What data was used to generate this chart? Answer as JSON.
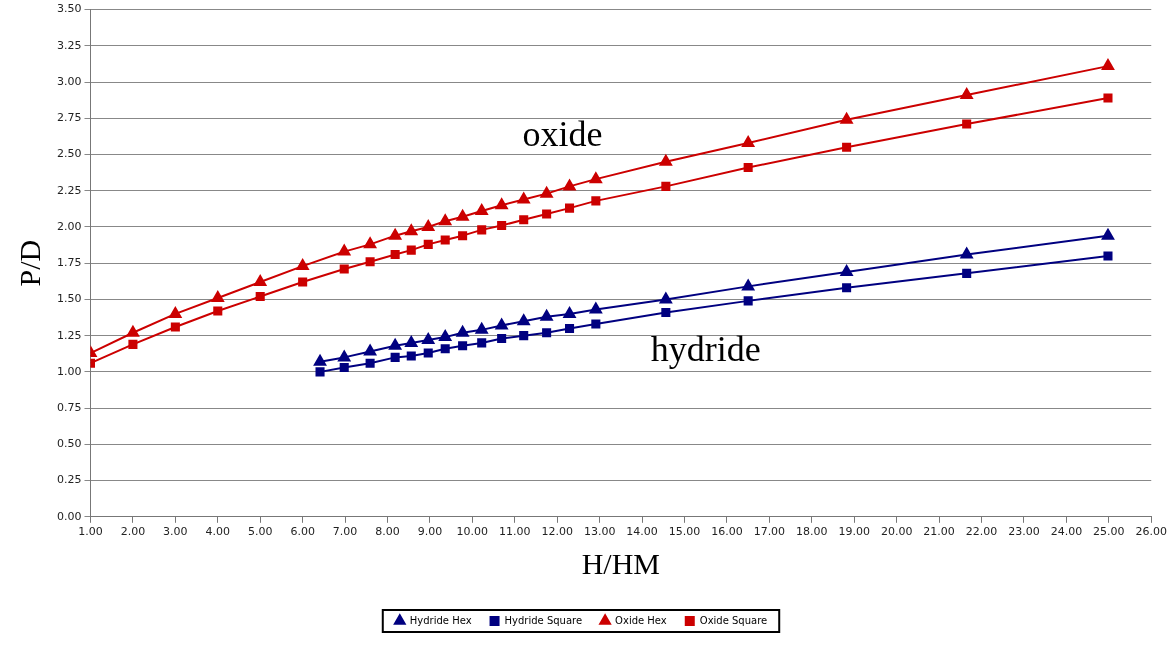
{
  "chart_data": {
    "type": "line",
    "xlabel": "H/HM",
    "ylabel": "P/D",
    "xlim": [
      1,
      26
    ],
    "xticks": [
      {
        "value": 1,
        "label": "1.00"
      },
      {
        "value": 2,
        "label": "2.00"
      },
      {
        "value": 3,
        "label": "3.00"
      },
      {
        "value": 4,
        "label": "4.00"
      },
      {
        "value": 5,
        "label": "5.00"
      },
      {
        "value": 6,
        "label": "6.00"
      },
      {
        "value": 7,
        "label": "7.00"
      },
      {
        "value": 8,
        "label": "8.00"
      },
      {
        "value": 9,
        "label": "9.00"
      },
      {
        "value": 10,
        "label": "10.00"
      },
      {
        "value": 11,
        "label": "11.00"
      },
      {
        "value": 12,
        "label": "12.00"
      },
      {
        "value": 13,
        "label": "13.00"
      },
      {
        "value": 14,
        "label": "14.00"
      },
      {
        "value": 15,
        "label": "15.00"
      },
      {
        "value": 16,
        "label": "16.00"
      },
      {
        "value": 17,
        "label": "17.00"
      },
      {
        "value": 18,
        "label": "18.00"
      },
      {
        "value": 19,
        "label": "19.00"
      },
      {
        "value": 20,
        "label": "20.00"
      },
      {
        "value": 21,
        "label": "21.00"
      },
      {
        "value": 22,
        "label": "22.00"
      },
      {
        "value": 23,
        "label": "23.00"
      },
      {
        "value": 24,
        "label": "24.00"
      },
      {
        "value": 25,
        "label": "25.00"
      },
      {
        "value": 26,
        "label": "26.00"
      }
    ],
    "ylim": [
      0,
      3.5
    ],
    "yticks": [
      {
        "value": 0,
        "label": "0.00"
      },
      {
        "value": 0.25,
        "label": "0.25"
      },
      {
        "value": 0.5,
        "label": "0.50"
      },
      {
        "value": 0.75,
        "label": "0.75"
      },
      {
        "value": 1,
        "label": "1.00"
      },
      {
        "value": 1.25,
        "label": "1.25"
      },
      {
        "value": 1.5,
        "label": "1.50"
      },
      {
        "value": 1.75,
        "label": "1.75"
      },
      {
        "value": 2,
        "label": "2.00"
      },
      {
        "value": 2.25,
        "label": "2.25"
      },
      {
        "value": 2.5,
        "label": "2.50"
      },
      {
        "value": 2.75,
        "label": "2.75"
      },
      {
        "value": 3,
        "label": "3.00"
      },
      {
        "value": 3.25,
        "label": "3.25"
      },
      {
        "value": 3.5,
        "label": "3.50"
      }
    ],
    "grid": "y",
    "legend": "bottom",
    "line_style": "solid",
    "annotations": [
      "oxide",
      "hydride"
    ],
    "series": [
      {
        "name": "Hydride Hex",
        "color": "#000080",
        "marker": "triangle",
        "x": [
          6.41,
          6.98,
          7.59,
          8.18,
          8.56,
          8.96,
          9.36,
          9.77,
          10.22,
          10.69,
          11.21,
          11.75,
          12.29,
          12.91,
          14.56,
          16.5,
          18.82,
          21.65,
          24.98
        ],
        "values": [
          1.07,
          1.1,
          1.14,
          1.18,
          1.2,
          1.22,
          1.24,
          1.27,
          1.29,
          1.32,
          1.35,
          1.38,
          1.4,
          1.43,
          1.5,
          1.59,
          1.69,
          1.81,
          1.94
        ]
      },
      {
        "name": "Hydride Square",
        "color": "#000080",
        "marker": "square",
        "x": [
          6.41,
          6.98,
          7.59,
          8.18,
          8.56,
          8.96,
          9.36,
          9.77,
          10.22,
          10.69,
          11.21,
          11.75,
          12.29,
          12.91,
          14.56,
          16.5,
          18.82,
          21.65,
          24.98
        ],
        "values": [
          1.0,
          1.03,
          1.06,
          1.1,
          1.11,
          1.13,
          1.16,
          1.18,
          1.2,
          1.23,
          1.25,
          1.27,
          1.3,
          1.33,
          1.41,
          1.49,
          1.58,
          1.68,
          1.8
        ]
      },
      {
        "name": "Oxide Hex",
        "color": "#cc0000",
        "marker": "triangle",
        "x": [
          1,
          2,
          3,
          4,
          5,
          6,
          6.98,
          7.59,
          8.18,
          8.56,
          8.96,
          9.36,
          9.77,
          10.22,
          10.69,
          11.21,
          11.75,
          12.29,
          12.91,
          14.56,
          16.5,
          18.82,
          21.65,
          24.98
        ],
        "values": [
          1.13,
          1.27,
          1.4,
          1.51,
          1.62,
          1.73,
          1.83,
          1.88,
          1.94,
          1.97,
          2.0,
          2.04,
          2.07,
          2.11,
          2.15,
          2.19,
          2.23,
          2.28,
          2.33,
          2.45,
          2.58,
          2.74,
          2.91,
          3.11
        ]
      },
      {
        "name": "Oxide Square",
        "color": "#cc0000",
        "marker": "square",
        "x": [
          1,
          2,
          3,
          4,
          5,
          6,
          6.98,
          7.59,
          8.18,
          8.56,
          8.96,
          9.36,
          9.77,
          10.22,
          10.69,
          11.21,
          11.75,
          12.29,
          12.91,
          14.56,
          16.5,
          18.82,
          21.65,
          24.98
        ],
        "values": [
          1.06,
          1.19,
          1.31,
          1.42,
          1.52,
          1.62,
          1.71,
          1.76,
          1.81,
          1.84,
          1.88,
          1.91,
          1.94,
          1.98,
          2.01,
          2.05,
          2.09,
          2.13,
          2.18,
          2.28,
          2.41,
          2.55,
          2.71,
          2.89
        ]
      }
    ]
  }
}
